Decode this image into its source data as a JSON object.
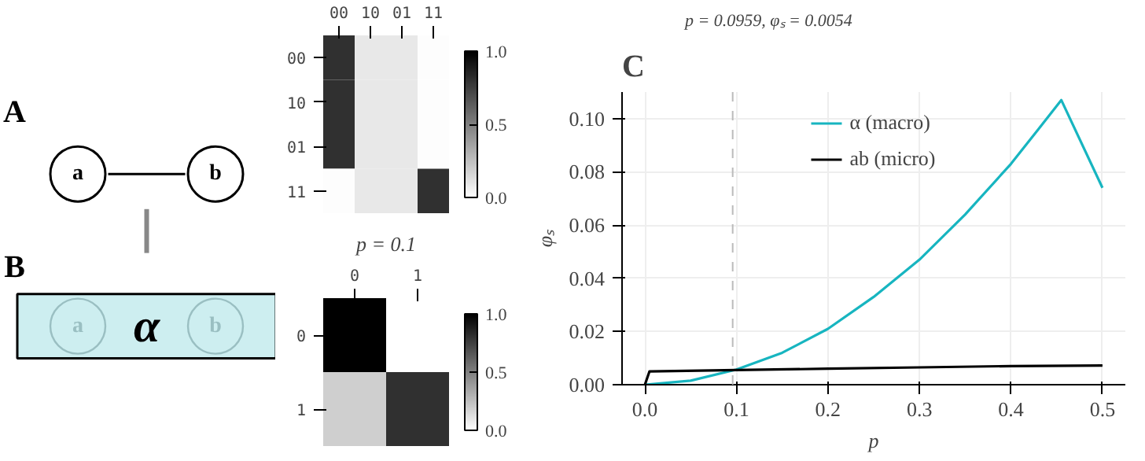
{
  "chart_data": [
    {
      "type": "other",
      "annotations": [
        "A",
        "a",
        "b",
        "B",
        "a",
        "b",
        "α"
      ]
    },
    {
      "type": "heatmap",
      "categories": [
        "00",
        "10",
        "01",
        "11"
      ],
      "y_categories": [
        "00",
        "10",
        "01",
        "11"
      ],
      "cells": [
        [
          0.81,
          0.09,
          0.09,
          0.01
        ],
        [
          0.81,
          0.09,
          0.09,
          0.01
        ],
        [
          0.81,
          0.09,
          0.09,
          0.01
        ],
        [
          0.01,
          0.09,
          0.09,
          0.81
        ]
      ],
      "clim": [
        0,
        1
      ],
      "cticks": [
        {
          "value": 0,
          "label": "0.0"
        },
        {
          "value": 0.5,
          "label": "0.5"
        },
        {
          "value": 1,
          "label": "1.0"
        }
      ]
    },
    {
      "type": "heatmap",
      "title": "p = 0.1",
      "categories": [
        "0",
        "1"
      ],
      "y_categories": [
        "0",
        "1"
      ],
      "cells": [
        [
          1.0,
          0.0
        ],
        [
          0.19,
          0.81
        ]
      ],
      "clim": [
        0,
        1
      ],
      "cticks": [
        {
          "value": 0,
          "label": "0.0"
        },
        {
          "value": 0.5,
          "label": "0.5"
        },
        {
          "value": 1,
          "label": "1.0"
        }
      ]
    },
    {
      "type": "line",
      "title": "p = 0.0959, φₛ = 0.0054",
      "xlabel": "p",
      "ylabel": "φₛ",
      "annotations": [
        "C"
      ],
      "series": [
        {
          "name": "α (macro)",
          "color": "#17b5c0",
          "x": [
            0,
            0.05,
            0.1,
            0.15,
            0.2,
            0.25,
            0.3,
            0.35,
            0.4,
            0.43,
            0.455,
            0.5
          ],
          "values": [
            0,
            0.0015,
            0.0057,
            0.012,
            0.021,
            0.033,
            0.047,
            0.064,
            0.083,
            0.096,
            0.107,
            0.074
          ]
        },
        {
          "name": "ab (micro)",
          "color": "#000000",
          "x": [
            0,
            0.005,
            0.1,
            0.2,
            0.3,
            0.4,
            0.5
          ],
          "values": [
            0,
            0.005,
            0.0055,
            0.006,
            0.0065,
            0.007,
            0.0072
          ]
        }
      ],
      "xlim": [
        -0.025,
        0.525
      ],
      "xticks": [
        {
          "value": 0,
          "label": "0.0"
        },
        {
          "value": 0.1,
          "label": "0.1"
        },
        {
          "value": 0.2,
          "label": "0.2"
        },
        {
          "value": 0.3,
          "label": "0.3"
        },
        {
          "value": 0.4,
          "label": "0.4"
        },
        {
          "value": 0.5,
          "label": "0.5"
        }
      ],
      "ylim": [
        0,
        0.11
      ],
      "yticks": [
        {
          "value": 0,
          "label": "0.00"
        },
        {
          "value": 0.02,
          "label": "0.02"
        },
        {
          "value": 0.04,
          "label": "0.04"
        },
        {
          "value": 0.06,
          "label": "0.06"
        },
        {
          "value": 0.08,
          "label": "0.08"
        },
        {
          "value": 0.1,
          "label": "0.10"
        }
      ],
      "ref_lines": [
        {
          "axis": "x",
          "value": 0.0959,
          "color": "#bbbbbb",
          "line_style": "dashed"
        }
      ],
      "grid": true,
      "legend": "top"
    }
  ]
}
